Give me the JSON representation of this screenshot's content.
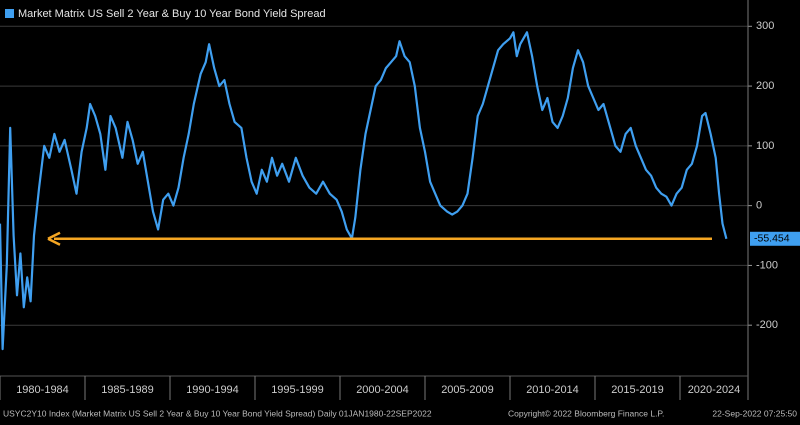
{
  "chart_data": {
    "type": "line",
    "legend": "Market Matrix US Sell 2 Year & Buy 10 Year Bond Yield Spread",
    "footer": {
      "source": "USYC2Y10 Index (Market Matrix US Sell 2 Year & Buy 10 Year Bond Yield Spread)  Daily 01JAN1980-22SEP2022",
      "copyright": "Copyright© 2022 Bloomberg Finance L.P.",
      "timestamp": "22-Sep-2022 07:25:50"
    },
    "xlim": [
      1980,
      2024
    ],
    "xticks": [
      {
        "value": 1980,
        "label": "1980-1984"
      },
      {
        "value": 1985,
        "label": "1985-1989"
      },
      {
        "value": 1990,
        "label": "1990-1994"
      },
      {
        "value": 1995,
        "label": "1995-1999"
      },
      {
        "value": 2000,
        "label": "2000-2004"
      },
      {
        "value": 2005,
        "label": "2005-2009"
      },
      {
        "value": 2010,
        "label": "2010-2014"
      },
      {
        "value": 2015,
        "label": "2015-2019"
      },
      {
        "value": 2020,
        "label": "2020-2024"
      }
    ],
    "ylim": [
      -285,
      344
    ],
    "yticks": [
      300,
      200,
      100,
      0,
      -100,
      -200
    ],
    "grid": true,
    "series": [
      {
        "name": "Market Matrix US Sell 2 Year & Buy 10 Year Bond Yield Spread",
        "color": "#3f9ff0",
        "x": [
          1980.0,
          1980.15,
          1980.4,
          1980.6,
          1980.8,
          1981.0,
          1981.2,
          1981.4,
          1981.6,
          1981.8,
          1982.0,
          1982.3,
          1982.6,
          1982.9,
          1983.2,
          1983.5,
          1983.8,
          1984.2,
          1984.5,
          1984.8,
          1985.1,
          1985.3,
          1985.6,
          1985.9,
          1986.2,
          1986.5,
          1986.8,
          1987.2,
          1987.5,
          1987.8,
          1988.1,
          1988.4,
          1988.7,
          1989.0,
          1989.3,
          1989.6,
          1989.9,
          1990.2,
          1990.5,
          1990.8,
          1991.1,
          1991.4,
          1991.8,
          1992.1,
          1992.3,
          1992.6,
          1992.9,
          1993.2,
          1993.5,
          1993.8,
          1994.2,
          1994.5,
          1994.8,
          1995.1,
          1995.4,
          1995.7,
          1996.0,
          1996.3,
          1996.6,
          1997.0,
          1997.4,
          1997.8,
          1998.2,
          1998.6,
          1999.0,
          1999.4,
          1999.8,
          2000.1,
          2000.4,
          2000.7,
          2000.9,
          2001.2,
          2001.5,
          2001.8,
          2002.1,
          2002.4,
          2002.7,
          2003.0,
          2003.3,
          2003.5,
          2003.8,
          2004.1,
          2004.4,
          2004.7,
          2005.0,
          2005.3,
          2005.6,
          2005.9,
          2006.3,
          2006.6,
          2006.9,
          2007.2,
          2007.5,
          2007.8,
          2008.1,
          2008.4,
          2008.7,
          2009.0,
          2009.3,
          2009.6,
          2010.0,
          2010.2,
          2010.4,
          2010.6,
          2011.0,
          2011.3,
          2011.6,
          2011.9,
          2012.2,
          2012.5,
          2012.8,
          2013.1,
          2013.4,
          2013.7,
          2014.0,
          2014.3,
          2014.6,
          2014.9,
          2015.2,
          2015.5,
          2015.8,
          2016.2,
          2016.5,
          2016.8,
          2017.1,
          2017.4,
          2017.7,
          2018.0,
          2018.3,
          2018.6,
          2018.9,
          2019.2,
          2019.5,
          2019.8,
          2020.1,
          2020.4,
          2020.7,
          2021.0,
          2021.3,
          2021.5,
          2021.8,
          2022.1,
          2022.3,
          2022.5,
          2022.73
        ],
        "values": [
          -30,
          -240,
          -100,
          130,
          -50,
          -150,
          -80,
          -170,
          -120,
          -160,
          -50,
          30,
          100,
          80,
          120,
          90,
          110,
          60,
          20,
          90,
          130,
          170,
          150,
          120,
          60,
          150,
          130,
          80,
          140,
          110,
          70,
          90,
          40,
          -10,
          -40,
          10,
          20,
          0,
          30,
          80,
          120,
          170,
          220,
          240,
          270,
          230,
          200,
          210,
          170,
          140,
          130,
          80,
          40,
          20,
          60,
          40,
          80,
          50,
          70,
          40,
          80,
          50,
          30,
          20,
          40,
          20,
          10,
          -10,
          -40,
          -55,
          -20,
          60,
          120,
          160,
          200,
          210,
          230,
          240,
          250,
          275,
          250,
          240,
          200,
          130,
          90,
          40,
          20,
          0,
          -10,
          -15,
          -10,
          0,
          20,
          80,
          150,
          170,
          200,
          230,
          260,
          270,
          280,
          290,
          250,
          270,
          290,
          250,
          200,
          160,
          180,
          140,
          130,
          150,
          180,
          230,
          260,
          240,
          200,
          180,
          160,
          170,
          140,
          100,
          90,
          120,
          130,
          100,
          80,
          60,
          50,
          30,
          20,
          15,
          0,
          20,
          30,
          60,
          70,
          100,
          150,
          155,
          120,
          80,
          20,
          -30,
          -55.454
        ]
      }
    ]
  }
}
